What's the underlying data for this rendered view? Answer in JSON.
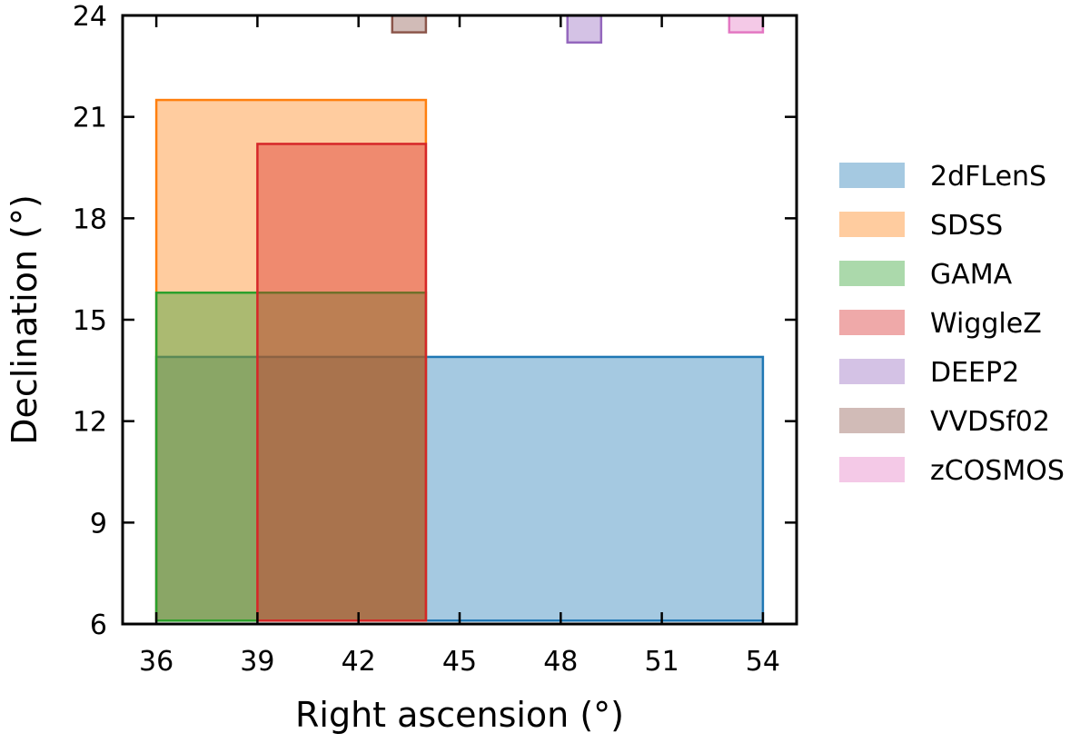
{
  "chart_data": {
    "type": "area",
    "title": "",
    "xlabel": "Right ascension (°)",
    "ylabel": "Declination (°)",
    "xlim": [
      35,
      55
    ],
    "ylim": [
      6,
      24
    ],
    "xticks": [
      36,
      39,
      42,
      45,
      48,
      51,
      54
    ],
    "yticks": [
      6,
      9,
      12,
      15,
      18,
      21,
      24
    ],
    "grid": false,
    "legend_position": "outside-right",
    "series": [
      {
        "name": "2dFLenS",
        "color": "#1f77b4",
        "ra": [
          36,
          54
        ],
        "dec": [
          6.1,
          13.9
        ]
      },
      {
        "name": "SDSS",
        "color": "#ff7f0e",
        "ra": [
          36,
          44
        ],
        "dec": [
          6.1,
          21.5
        ]
      },
      {
        "name": "GAMA",
        "color": "#2ca02c",
        "ra": [
          36,
          44
        ],
        "dec": [
          6.1,
          15.8
        ]
      },
      {
        "name": "WiggleZ",
        "color": "#d62728",
        "ra": [
          39,
          44
        ],
        "dec": [
          6.1,
          20.2
        ]
      },
      {
        "name": "DEEP2",
        "color": "#9467bd",
        "ra": [
          48.2,
          49.2
        ],
        "dec": [
          23.2,
          24.0
        ]
      },
      {
        "name": "VVDSf02",
        "color": "#8c564b",
        "ra": [
          43,
          44
        ],
        "dec": [
          23.5,
          24.0
        ]
      },
      {
        "name": "zCOSMOS",
        "color": "#e377c2",
        "ra": [
          53,
          54
        ],
        "dec": [
          23.5,
          24.0
        ]
      }
    ]
  }
}
